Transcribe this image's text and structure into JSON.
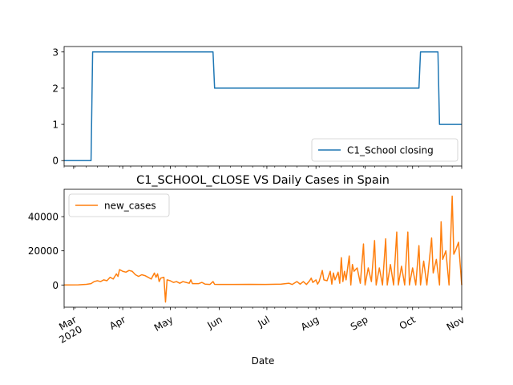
{
  "chart_data": [
    {
      "type": "line",
      "x_type": "date",
      "x_range": [
        "2020-02-24",
        "2020-11-01"
      ],
      "x_ticks": [
        {
          "date": "2020-03-01",
          "label": "Mar",
          "sublabel": "2020"
        },
        {
          "date": "2020-04-01",
          "label": "Apr"
        },
        {
          "date": "2020-05-01",
          "label": "May"
        },
        {
          "date": "2020-06-01",
          "label": "Jun"
        },
        {
          "date": "2020-07-01",
          "label": "Jul"
        },
        {
          "date": "2020-08-01",
          "label": "Aug"
        },
        {
          "date": "2020-09-01",
          "label": "Sep"
        },
        {
          "date": "2020-10-01",
          "label": "Oct"
        },
        {
          "date": "2020-11-01",
          "label": "Nov"
        }
      ],
      "ylim": [
        -0.15,
        3.15
      ],
      "y_ticks": [
        0,
        1,
        2,
        3
      ],
      "legend_position": "lower-right",
      "series": [
        {
          "name": "C1_School closing",
          "color": "#1f77b4",
          "step": true,
          "points": [
            [
              "2020-02-24",
              0
            ],
            [
              "2020-03-12",
              0
            ],
            [
              "2020-03-13",
              3
            ],
            [
              "2020-05-28",
              3
            ],
            [
              "2020-05-29",
              2
            ],
            [
              "2020-10-05",
              2
            ],
            [
              "2020-10-06",
              3
            ],
            [
              "2020-10-17",
              3
            ],
            [
              "2020-10-18",
              1
            ],
            [
              "2020-11-01",
              1
            ]
          ]
        }
      ]
    },
    {
      "type": "line",
      "title": "C1_SCHOOL_CLOSE VS Daily Cases in Spain",
      "xlabel": "Date",
      "x_type": "date",
      "x_range": [
        "2020-02-24",
        "2020-11-01"
      ],
      "ylim": [
        -13000,
        56000
      ],
      "y_ticks": [
        0,
        20000,
        40000
      ],
      "legend_position": "top-left",
      "series": [
        {
          "name": "new_cases",
          "color": "#ff7f0e",
          "points": [
            [
              "2020-02-24",
              0
            ],
            [
              "2020-03-04",
              100
            ],
            [
              "2020-03-09",
              400
            ],
            [
              "2020-03-12",
              800
            ],
            [
              "2020-03-14",
              2000
            ],
            [
              "2020-03-16",
              2500
            ],
            [
              "2020-03-18",
              2000
            ],
            [
              "2020-03-20",
              3000
            ],
            [
              "2020-03-22",
              2500
            ],
            [
              "2020-03-24",
              4500
            ],
            [
              "2020-03-26",
              3500
            ],
            [
              "2020-03-28",
              6500
            ],
            [
              "2020-03-29",
              5000
            ],
            [
              "2020-03-30",
              9000
            ],
            [
              "2020-04-01",
              8000
            ],
            [
              "2020-04-03",
              7500
            ],
            [
              "2020-04-05",
              8500
            ],
            [
              "2020-04-07",
              8000
            ],
            [
              "2020-04-09",
              6000
            ],
            [
              "2020-04-11",
              5000
            ],
            [
              "2020-04-13",
              6000
            ],
            [
              "2020-04-15",
              5500
            ],
            [
              "2020-04-17",
              4500
            ],
            [
              "2020-04-19",
              3500
            ],
            [
              "2020-04-21",
              7000
            ],
            [
              "2020-04-22",
              4500
            ],
            [
              "2020-04-23",
              6500
            ],
            [
              "2020-04-24",
              2000
            ],
            [
              "2020-04-25",
              4000
            ],
            [
              "2020-04-27",
              4500
            ],
            [
              "2020-04-28",
              -10000
            ],
            [
              "2020-04-29",
              3000
            ],
            [
              "2020-05-01",
              2500
            ],
            [
              "2020-05-03",
              1500
            ],
            [
              "2020-05-05",
              2000
            ],
            [
              "2020-05-07",
              1000
            ],
            [
              "2020-05-09",
              2000
            ],
            [
              "2020-05-11",
              1500
            ],
            [
              "2020-05-13",
              1000
            ],
            [
              "2020-05-14",
              3000
            ],
            [
              "2020-05-15",
              800
            ],
            [
              "2020-05-19",
              800
            ],
            [
              "2020-05-21",
              1500
            ],
            [
              "2020-05-23",
              500
            ],
            [
              "2020-05-26",
              300
            ],
            [
              "2020-05-28",
              2000
            ],
            [
              "2020-05-29",
              400
            ],
            [
              "2020-06-01",
              300
            ],
            [
              "2020-06-10",
              300
            ],
            [
              "2020-06-20",
              400
            ],
            [
              "2020-06-30",
              300
            ],
            [
              "2020-07-10",
              500
            ],
            [
              "2020-07-15",
              1000
            ],
            [
              "2020-07-17",
              300
            ],
            [
              "2020-07-20",
              2000
            ],
            [
              "2020-07-22",
              500
            ],
            [
              "2020-07-24",
              2000
            ],
            [
              "2020-07-26",
              300
            ],
            [
              "2020-07-28",
              2500
            ],
            [
              "2020-07-29",
              4000
            ],
            [
              "2020-07-30",
              1500
            ],
            [
              "2020-08-01",
              3000
            ],
            [
              "2020-08-02",
              500
            ],
            [
              "2020-08-03",
              2000
            ],
            [
              "2020-08-05",
              8500
            ],
            [
              "2020-08-06",
              3000
            ],
            [
              "2020-08-08",
              2500
            ],
            [
              "2020-08-10",
              8000
            ],
            [
              "2020-08-11",
              500
            ],
            [
              "2020-08-12",
              7000
            ],
            [
              "2020-08-13",
              3000
            ],
            [
              "2020-08-15",
              7500
            ],
            [
              "2020-08-16",
              1000
            ],
            [
              "2020-08-17",
              16000
            ],
            [
              "2020-08-18",
              2000
            ],
            [
              "2020-08-19",
              8000
            ],
            [
              "2020-08-20",
              3000
            ],
            [
              "2020-08-22",
              17000
            ],
            [
              "2020-08-23",
              0
            ],
            [
              "2020-08-24",
              12000
            ],
            [
              "2020-08-25",
              8000
            ],
            [
              "2020-08-27",
              10000
            ],
            [
              "2020-08-29",
              1000
            ],
            [
              "2020-08-31",
              24000
            ],
            [
              "2020-09-01",
              0
            ],
            [
              "2020-09-03",
              10000
            ],
            [
              "2020-09-05",
              2000
            ],
            [
              "2020-09-07",
              26000
            ],
            [
              "2020-09-08",
              0
            ],
            [
              "2020-09-10",
              10000
            ],
            [
              "2020-09-12",
              0
            ],
            [
              "2020-09-14",
              27000
            ],
            [
              "2020-09-15",
              0
            ],
            [
              "2020-09-17",
              12000
            ],
            [
              "2020-09-19",
              0
            ],
            [
              "2020-09-21",
              31000
            ],
            [
              "2020-09-22",
              0
            ],
            [
              "2020-09-24",
              11000
            ],
            [
              "2020-09-26",
              0
            ],
            [
              "2020-09-28",
              31000
            ],
            [
              "2020-09-29",
              0
            ],
            [
              "2020-10-01",
              10000
            ],
            [
              "2020-10-03",
              0
            ],
            [
              "2020-10-05",
              23000
            ],
            [
              "2020-10-06",
              0
            ],
            [
              "2020-10-08",
              14000
            ],
            [
              "2020-10-10",
              0
            ],
            [
              "2020-10-13",
              27500
            ],
            [
              "2020-10-14",
              7000
            ],
            [
              "2020-10-16",
              15000
            ],
            [
              "2020-10-18",
              0
            ],
            [
              "2020-10-19",
              37000
            ],
            [
              "2020-10-20",
              15000
            ],
            [
              "2020-10-22",
              20000
            ],
            [
              "2020-10-24",
              0
            ],
            [
              "2020-10-26",
              52000
            ],
            [
              "2020-10-27",
              18000
            ],
            [
              "2020-10-28",
              20000
            ],
            [
              "2020-10-30",
              25000
            ],
            [
              "2020-11-01",
              0
            ]
          ]
        }
      ]
    }
  ]
}
